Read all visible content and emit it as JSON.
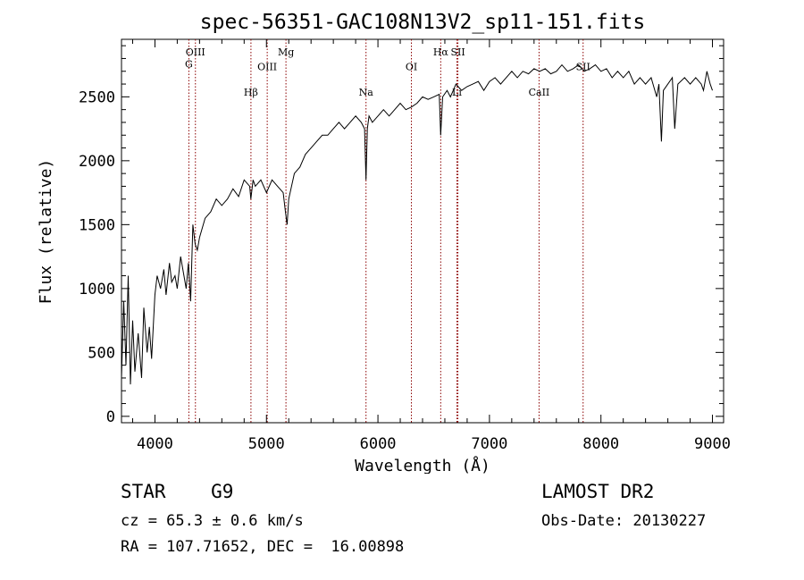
{
  "chart_data": {
    "type": "line",
    "title": "spec-56351-GAC108N13V2_sp11-151.fits",
    "xlabel": "Wavelength (Å)",
    "ylabel": "Flux (relative)",
    "xlim": [
      3700,
      9100
    ],
    "ylim": [
      -50,
      2950
    ],
    "xticks": [
      4000,
      5000,
      6000,
      7000,
      8000,
      9000
    ],
    "yticks": [
      0,
      500,
      1000,
      1500,
      2000,
      2500
    ],
    "grid": false,
    "line_color": "#000000",
    "marker_color": "#8b0000",
    "series": [
      {
        "x": [
          3700,
          3720,
          3740,
          3760,
          3780,
          3800,
          3820,
          3850,
          3880,
          3900,
          3930,
          3950,
          3970,
          4000,
          4020,
          4050,
          4080,
          4100,
          4130,
          4150,
          4180,
          4200,
          4230,
          4260,
          4280,
          4300,
          4320,
          4340,
          4360,
          4380,
          4400,
          4450,
          4500,
          4550,
          4600,
          4650,
          4700,
          4750,
          4800,
          4850,
          4860,
          4880,
          4900,
          4950,
          5000,
          5050,
          5100,
          5150,
          5170,
          5185,
          5200,
          5250,
          5300,
          5350,
          5400,
          5450,
          5500,
          5550,
          5600,
          5650,
          5700,
          5750,
          5800,
          5850,
          5880,
          5893,
          5905,
          5920,
          5950,
          6000,
          6050,
          6100,
          6150,
          6200,
          6250,
          6300,
          6350,
          6400,
          6450,
          6500,
          6550,
          6563,
          6580,
          6620,
          6650,
          6700,
          6750,
          6800,
          6850,
          6900,
          6950,
          7000,
          7050,
          7100,
          7150,
          7200,
          7250,
          7300,
          7350,
          7400,
          7450,
          7500,
          7550,
          7600,
          7650,
          7700,
          7750,
          7800,
          7850,
          7900,
          7950,
          8000,
          8050,
          8100,
          8150,
          8200,
          8250,
          8300,
          8350,
          8400,
          8450,
          8500,
          8520,
          8542,
          8560,
          8600,
          8640,
          8662,
          8690,
          8750,
          8800,
          8850,
          8900,
          8920,
          8950,
          8980,
          9000
        ],
        "values": [
          300,
          900,
          400,
          1100,
          250,
          750,
          350,
          650,
          300,
          850,
          500,
          700,
          450,
          950,
          1100,
          1000,
          1150,
          950,
          1200,
          1050,
          1100,
          1000,
          1250,
          1100,
          1000,
          1200,
          900,
          1500,
          1350,
          1300,
          1400,
          1550,
          1600,
          1700,
          1650,
          1700,
          1780,
          1720,
          1850,
          1800,
          1700,
          1850,
          1800,
          1850,
          1750,
          1850,
          1800,
          1750,
          1600,
          1500,
          1700,
          1900,
          1950,
          2050,
          2100,
          2150,
          2200,
          2200,
          2250,
          2300,
          2250,
          2300,
          2350,
          2300,
          2250,
          1850,
          2250,
          2350,
          2300,
          2350,
          2400,
          2350,
          2400,
          2450,
          2400,
          2420,
          2450,
          2500,
          2480,
          2500,
          2520,
          2200,
          2500,
          2550,
          2500,
          2600,
          2550,
          2580,
          2600,
          2620,
          2550,
          2620,
          2650,
          2600,
          2650,
          2700,
          2650,
          2700,
          2680,
          2720,
          2700,
          2720,
          2680,
          2700,
          2750,
          2700,
          2720,
          2750,
          2700,
          2720,
          2750,
          2700,
          2720,
          2650,
          2700,
          2650,
          2700,
          2600,
          2650,
          2600,
          2650,
          2500,
          2600,
          2150,
          2550,
          2600,
          2650,
          2250,
          2600,
          2650,
          2600,
          2650,
          2600,
          2550,
          2700,
          2600,
          2550
        ]
      }
    ],
    "lines": [
      {
        "label": "G",
        "x": 4304,
        "label_y": 2730
      },
      {
        "label": "OIII",
        "x": 4363,
        "label_y": 2825
      },
      {
        "label": "Hβ",
        "x": 4861,
        "label_y": 2510
      },
      {
        "label": "OIII",
        "x": 5007,
        "label_y": 2710
      },
      {
        "label": "Mg",
        "x": 5175,
        "label_y": 2825
      },
      {
        "label": "Na",
        "x": 5893,
        "label_y": 2510
      },
      {
        "label": "OI",
        "x": 6300,
        "label_y": 2710
      },
      {
        "label": "Hα",
        "x": 6563,
        "label_y": 2825
      },
      {
        "label": "SII",
        "x": 6717,
        "label_y": 2825
      },
      {
        "label": "Li",
        "x": 6708,
        "label_y": 2510
      },
      {
        "label": "CaII",
        "x": 7445,
        "label_y": 2510
      },
      {
        "label": "SII",
        "x": 7840,
        "label_y": 2710
      }
    ]
  },
  "info": {
    "object": "STAR    G9",
    "cz": "cz = 65.3 ± 0.6 km/s",
    "radec": "RA = 107.71652, DEC =  16.00898",
    "survey": "LAMOST DR2",
    "obsdate": "Obs-Date: 20130227"
  }
}
